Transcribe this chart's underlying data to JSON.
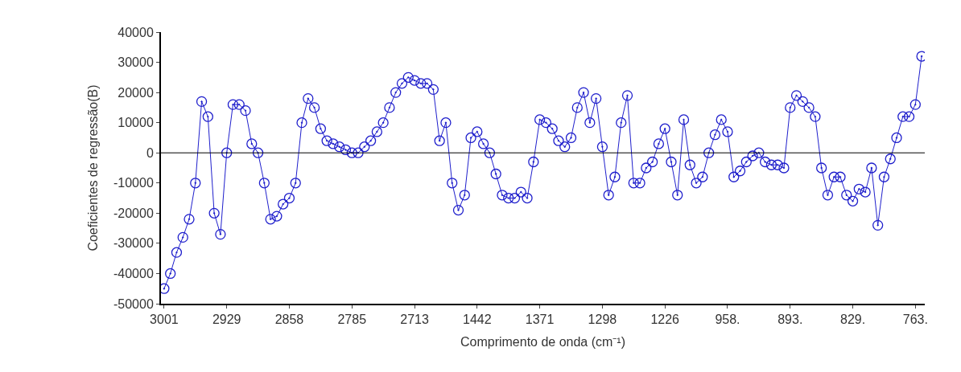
{
  "chart_data": {
    "type": "line",
    "xlabel": "Comprimento de onda (cm⁻¹)",
    "ylabel": "Coeficientes de regressão(B)",
    "categories": [
      "3001",
      null,
      null,
      null,
      null,
      null,
      null,
      null,
      null,
      null,
      "2929",
      null,
      null,
      null,
      null,
      null,
      null,
      null,
      null,
      null,
      "2858",
      null,
      null,
      null,
      null,
      null,
      null,
      null,
      null,
      null,
      "2785",
      null,
      null,
      null,
      null,
      null,
      null,
      null,
      null,
      null,
      "2713",
      null,
      null,
      null,
      null,
      null,
      null,
      null,
      null,
      null,
      "1442",
      null,
      null,
      null,
      null,
      null,
      null,
      null,
      null,
      null,
      "1371",
      null,
      null,
      null,
      null,
      null,
      null,
      null,
      null,
      null,
      "1298",
      null,
      null,
      null,
      null,
      null,
      null,
      null,
      null,
      null,
      "1226",
      null,
      null,
      null,
      null,
      null,
      null,
      null,
      null,
      null,
      "958.",
      null,
      null,
      null,
      null,
      null,
      null,
      null,
      null,
      null,
      "893.",
      null,
      null,
      null,
      null,
      null,
      null,
      null,
      null,
      null,
      "829.",
      null,
      null,
      null,
      null,
      null,
      null,
      null,
      null,
      null,
      "763.",
      null
    ],
    "series": [
      {
        "color": "#1f1fcc",
        "values": [
          -45000,
          -40000,
          -33000,
          -28000,
          -22000,
          -10000,
          17000,
          12000,
          -20000,
          -27000,
          0,
          16000,
          16000,
          14000,
          3000,
          0,
          -10000,
          -22000,
          -21000,
          -17000,
          -15000,
          -10000,
          10000,
          18000,
          15000,
          8000,
          4000,
          3000,
          2000,
          1000,
          0,
          0,
          2000,
          4000,
          7000,
          10000,
          15000,
          20000,
          23000,
          25000,
          24000,
          23000,
          23000,
          21000,
          4000,
          10000,
          -10000,
          -19000,
          -14000,
          5000,
          7000,
          3000,
          0,
          -7000,
          -14000,
          -15000,
          -15000,
          -13000,
          -15000,
          -3000,
          11000,
          10000,
          8000,
          4000,
          2000,
          5000,
          15000,
          20000,
          10000,
          18000,
          2000,
          -14000,
          -8000,
          10000,
          19000,
          -10000,
          -10000,
          -5000,
          -3000,
          3000,
          8000,
          -3000,
          -14000,
          11000,
          -4000,
          -10000,
          -8000,
          0,
          6000,
          11000,
          7000,
          -8000,
          -6000,
          -3000,
          -1000,
          0,
          -3000,
          -4000,
          -4000,
          -5000,
          15000,
          19000,
          17000,
          15000,
          12000,
          -5000,
          -14000,
          -8000,
          -8000,
          -14000,
          -16000,
          -12000,
          -13000,
          -5000,
          -24000,
          -8000,
          -2000,
          5000,
          12000,
          12000,
          16000,
          32000
        ]
      }
    ],
    "ylim": [
      -50000,
      40000
    ],
    "yticks": [
      -50000,
      -40000,
      -30000,
      -20000,
      -10000,
      0,
      10000,
      20000,
      30000,
      40000
    ],
    "ref_lines": [
      {
        "axis": "y",
        "value": 0,
        "color": "#000000"
      }
    ],
    "marker": "circle",
    "line_style": "solid"
  }
}
